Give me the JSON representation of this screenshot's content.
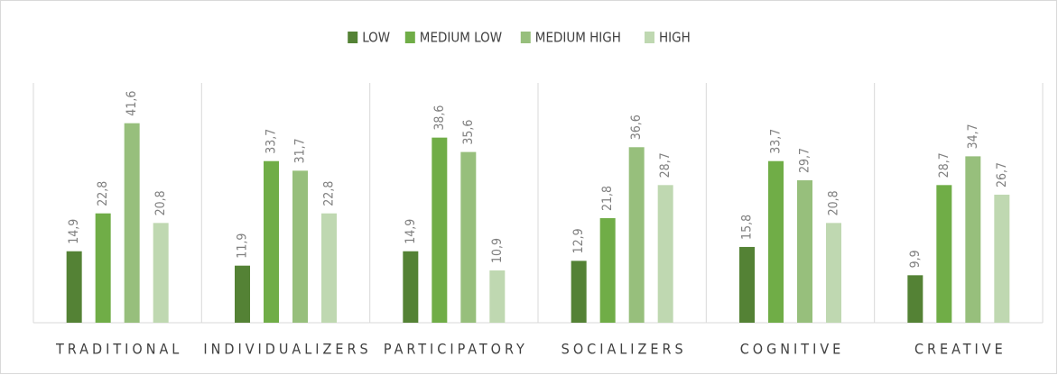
{
  "chart_data": {
    "type": "bar",
    "categories": [
      "TRADITIONAL",
      "INDIVIDUALIZERS",
      "PARTICIPATORY",
      "SOCIALIZERS",
      "COGNITIVE",
      "CREATIVE"
    ],
    "series": [
      {
        "name": "LOW",
        "color": "#548235",
        "values": [
          14.9,
          11.9,
          14.9,
          12.9,
          15.8,
          9.9
        ],
        "value_labels": [
          "14,9",
          "11,9",
          "14,9",
          "12,9",
          "15,8",
          "9,9"
        ]
      },
      {
        "name": "MEDIUM LOW",
        "color": "#70ad47",
        "values": [
          22.8,
          33.7,
          38.6,
          21.8,
          33.7,
          28.7
        ],
        "value_labels": [
          "22,8",
          "33,7",
          "38,6",
          "21,8",
          "33,7",
          "28,7"
        ]
      },
      {
        "name": "MEDIUM HIGH",
        "color": "#97bf7c",
        "values": [
          41.6,
          31.7,
          35.6,
          36.6,
          29.7,
          34.7
        ],
        "value_labels": [
          "41,6",
          "31,7",
          "35,6",
          "36,6",
          "29,7",
          "34,7"
        ]
      },
      {
        "name": "HIGH",
        "color": "#bfd8b1",
        "values": [
          20.8,
          22.8,
          10.9,
          28.7,
          20.8,
          26.7
        ],
        "value_labels": [
          "20,8",
          "22,8",
          "10,9",
          "28,7",
          "20,8",
          "26,7"
        ]
      }
    ],
    "ylim": [
      0,
      50
    ],
    "legend": "top"
  }
}
